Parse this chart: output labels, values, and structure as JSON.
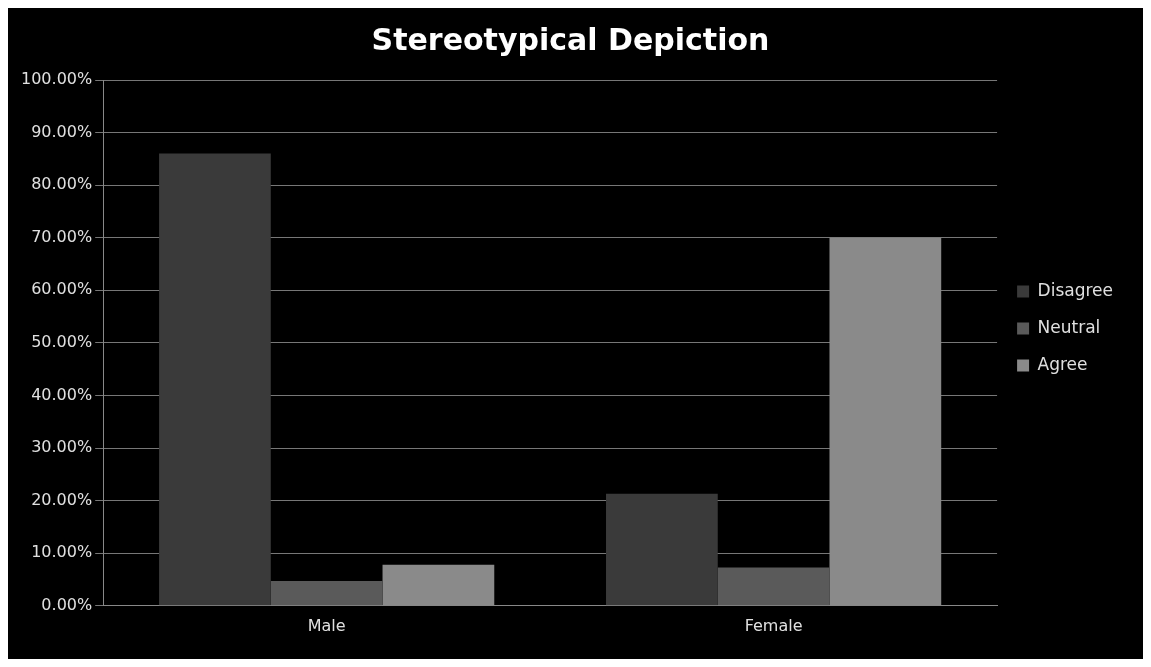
{
  "chart_data": {
    "type": "bar",
    "title": "Stereotypical Depiction",
    "categories": [
      "Male",
      "Female"
    ],
    "series": [
      {
        "name": "Disagree",
        "color": "#3a3a3a",
        "values": [
          86,
          21.3
        ]
      },
      {
        "name": "Neutral",
        "color": "#5a5a5a",
        "values": [
          4.7,
          7.3
        ]
      },
      {
        "name": "Agree",
        "color": "#8a8a8a",
        "values": [
          7.8,
          70
        ]
      }
    ],
    "ylim": [
      0,
      100
    ],
    "yticks": [
      {
        "value": 0,
        "label": "0.00%"
      },
      {
        "value": 10,
        "label": "10.00%"
      },
      {
        "value": 20,
        "label": "20.00%"
      },
      {
        "value": 30,
        "label": "30.00%"
      },
      {
        "value": 40,
        "label": "40.00%"
      },
      {
        "value": 50,
        "label": "50.00%"
      },
      {
        "value": 60,
        "label": "60.00%"
      },
      {
        "value": 70,
        "label": "70.00%"
      },
      {
        "value": 80,
        "label": "80.00%"
      },
      {
        "value": 90,
        "label": "90.00%"
      },
      {
        "value": 100,
        "label": "100.00%"
      }
    ],
    "grid": "y",
    "legend": "right"
  }
}
